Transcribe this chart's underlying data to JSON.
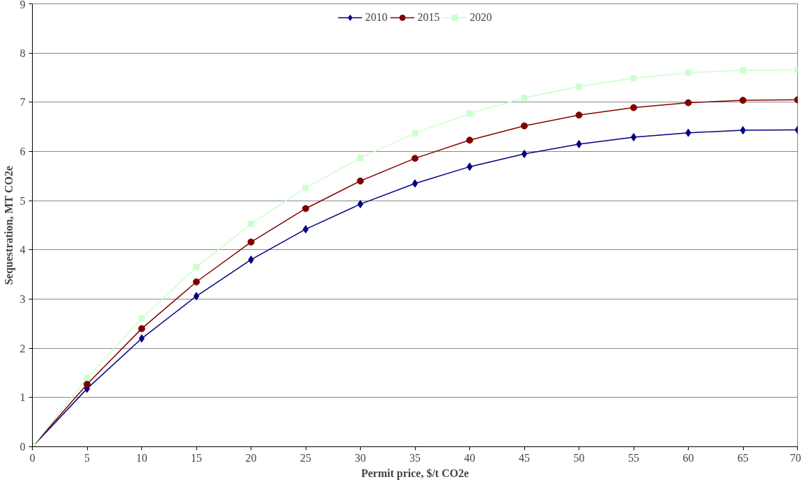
{
  "chart_data": {
    "type": "line",
    "xlabel": "Permit price, $/t CO2e",
    "ylabel": "Sequestration, MT CO2e",
    "x": [
      0,
      5,
      10,
      15,
      20,
      25,
      30,
      35,
      40,
      45,
      50,
      55,
      60,
      65,
      70
    ],
    "series": [
      {
        "name": "2010",
        "color": "#000080",
        "marker": "diamond",
        "values": [
          0,
          1.18,
          2.2,
          3.06,
          3.8,
          4.42,
          4.93,
          5.35,
          5.69,
          5.95,
          6.15,
          6.29,
          6.38,
          6.43,
          6.44
        ]
      },
      {
        "name": "2015",
        "color": "#800000",
        "marker": "circle",
        "values": [
          0,
          1.27,
          2.4,
          3.35,
          4.16,
          4.84,
          5.4,
          5.86,
          6.23,
          6.52,
          6.74,
          6.89,
          6.99,
          7.04,
          7.05
        ]
      },
      {
        "name": "2020",
        "color": "#ccffcc",
        "marker": "square",
        "values": [
          0,
          1.4,
          2.61,
          3.65,
          4.53,
          5.26,
          5.87,
          6.37,
          6.77,
          7.09,
          7.32,
          7.49,
          7.6,
          7.65,
          7.66
        ]
      }
    ],
    "xlim": [
      0,
      70
    ],
    "xticks": [
      0,
      5,
      10,
      15,
      20,
      25,
      30,
      35,
      40,
      45,
      50,
      55,
      60,
      65,
      70
    ],
    "ylim": [
      0,
      9
    ],
    "yticks": [
      0,
      1,
      2,
      3,
      4,
      5,
      6,
      7,
      8,
      9
    ],
    "grid": "y",
    "legend": "top",
    "line_style": "solid"
  }
}
